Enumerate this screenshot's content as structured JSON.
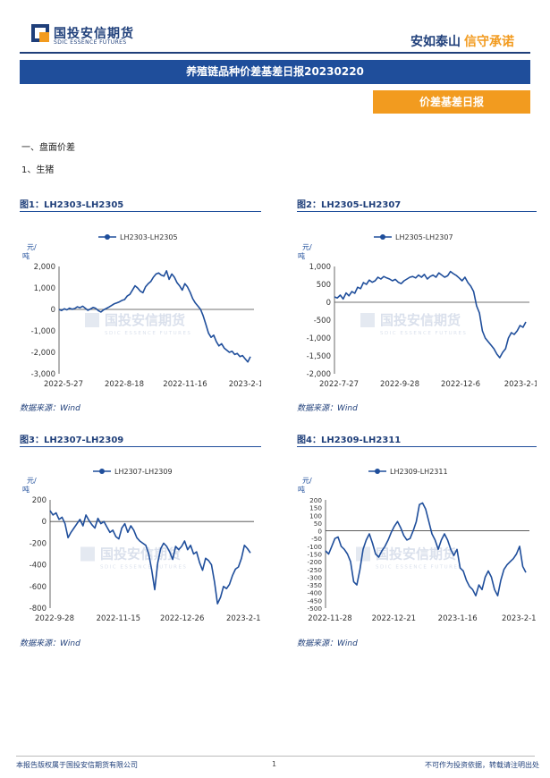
{
  "header": {
    "logo_cn": "国投安信期货",
    "logo_en": "SDIC ESSENCE FUTURES",
    "slogan_a": "安如泰山",
    "slogan_b": "信守承诺",
    "brand_color": "#1f3f7a",
    "accent_color": "#f29b1f"
  },
  "title": "养殖链品种价差基差日报20230220",
  "tag": "价差基差日报",
  "section": "一、盘面价差",
  "subsection": "1、生猪",
  "watermark_cn": "国投安信期货",
  "watermark_en": "SDIC ESSENCE FUTURES",
  "source": "数据来源：Wind",
  "footer": {
    "left": "本报告版权属于国投安信期货有限公司",
    "page": "1",
    "right": "不可作为投资依据，转载请注明出处"
  },
  "charts": [
    {
      "title": "图1：LH2303-LH2305",
      "legend": "LH2303-LH2305",
      "unit": "元/吨",
      "ylim": [
        -3000,
        2000
      ],
      "yticks": [
        "2,000",
        "1,000",
        "0",
        "-1,000",
        "-2,000",
        "-3,000"
      ],
      "xticks": [
        "2022-5-27",
        "2022-8-18",
        "2022-11-16",
        "2023-2-1"
      ]
    },
    {
      "title": "图2：LH2305-LH2307",
      "legend": "LH2305-LH2307",
      "unit": "元/吨",
      "ylim": [
        -2000,
        1000
      ],
      "yticks": [
        "1,000",
        "500",
        "0",
        "-500",
        "-1,000",
        "-1,500",
        "-2,000"
      ],
      "xticks": [
        "2022-7-27",
        "2022-9-28",
        "2022-12-6",
        "2023-2-1"
      ]
    },
    {
      "title": "图3：LH2307-LH2309",
      "legend": "LH2307-LH2309",
      "unit": "元/吨",
      "ylim": [
        -800,
        200
      ],
      "yticks": [
        "200",
        "0",
        "-200",
        "-400",
        "-600",
        "-800"
      ],
      "xticks": [
        "2022-9-28",
        "2022-11-15",
        "2022-12-26",
        "2023-2-13"
      ]
    },
    {
      "title": "图4：LH2309-LH2311",
      "legend": "LH2309-LH2311",
      "unit": "元/吨",
      "ylim": [
        -500,
        200
      ],
      "yticks": [
        "200",
        "150",
        "100",
        "50",
        "0",
        "-50",
        "-100",
        "-150",
        "-200",
        "-250",
        "-300",
        "-350",
        "-400",
        "-450",
        "-500"
      ],
      "xticks": [
        "2022-11-28",
        "2022-12-21",
        "2023-1-16",
        "2023-2-15"
      ]
    }
  ],
  "chart_data": [
    {
      "type": "line",
      "title": "图1：LH2303-LH2305",
      "ylabel": "元/吨",
      "ylim": [
        -3000,
        2000
      ],
      "series": [
        {
          "name": "LH2303-LH2305",
          "color": "#1f4e9b",
          "values": [
            0,
            -50,
            30,
            -20,
            60,
            10,
            40,
            120,
            80,
            150,
            60,
            -40,
            20,
            90,
            50,
            -60,
            -120,
            -20,
            40,
            110,
            180,
            260,
            300,
            350,
            420,
            460,
            620,
            700,
            900,
            1100,
            1000,
            850,
            780,
            1050,
            1200,
            1300,
            1500,
            1650,
            1700,
            1600,
            1550,
            1800,
            1400,
            1650,
            1500,
            1250,
            1100,
            900,
            1200,
            1050,
            800,
            500,
            300,
            150,
            0,
            -300,
            -700,
            -1100,
            -1300,
            -1200,
            -1500,
            -1700,
            -1600,
            -1800,
            -1900,
            -2000,
            -1950,
            -2100,
            -2050,
            -2200,
            -2150,
            -2300,
            -2450,
            -2200
          ]
        }
      ]
    },
    {
      "type": "line",
      "title": "图2：LH2305-LH2307",
      "ylabel": "元/吨",
      "ylim": [
        -2000,
        1000
      ],
      "series": [
        {
          "name": "LH2305-LH2307",
          "color": "#1f4e9b",
          "values": [
            150,
            120,
            200,
            90,
            260,
            180,
            300,
            250,
            420,
            380,
            550,
            500,
            620,
            560,
            600,
            700,
            650,
            720,
            680,
            650,
            600,
            640,
            560,
            520,
            600,
            650,
            700,
            720,
            680,
            760,
            700,
            780,
            650,
            720,
            760,
            700,
            820,
            760,
            700,
            740,
            860,
            800,
            750,
            680,
            600,
            700,
            550,
            450,
            300,
            -100,
            -300,
            -800,
            -1000,
            -1100,
            -1200,
            -1300,
            -1450,
            -1550,
            -1400,
            -1300,
            -1000,
            -850,
            -900,
            -800,
            -650,
            -700,
            -550
          ]
        }
      ]
    },
    {
      "type": "line",
      "title": "图3：LH2307-LH2309",
      "ylabel": "元/吨",
      "ylim": [
        -800,
        200
      ],
      "series": [
        {
          "name": "LH2307-LH2309",
          "color": "#1f4e9b",
          "values": [
            100,
            60,
            80,
            20,
            40,
            -20,
            -150,
            -100,
            -60,
            -20,
            20,
            -40,
            60,
            10,
            -30,
            -60,
            30,
            -20,
            0,
            -50,
            -100,
            -80,
            -140,
            -160,
            -60,
            -20,
            -100,
            -40,
            -80,
            -150,
            -180,
            -200,
            -220,
            -300,
            -450,
            -630,
            -380,
            -250,
            -200,
            -230,
            -280,
            -350,
            -230,
            -260,
            -230,
            -180,
            -260,
            -220,
            -300,
            -280,
            -380,
            -450,
            -340,
            -360,
            -400,
            -560,
            -760,
            -700,
            -600,
            -620,
            -580,
            -500,
            -440,
            -420,
            -340,
            -220,
            -250,
            -290
          ]
        }
      ]
    },
    {
      "type": "line",
      "title": "图4：LH2309-LH2311",
      "ylabel": "元/吨",
      "ylim": [
        -500,
        200
      ],
      "series": [
        {
          "name": "LH2309-LH2311",
          "color": "#1f4e9b",
          "values": [
            -130,
            -150,
            -100,
            -50,
            -40,
            -100,
            -120,
            -150,
            -200,
            -330,
            -350,
            -250,
            -120,
            -60,
            -20,
            -80,
            -150,
            -170,
            -130,
            -100,
            -60,
            -10,
            30,
            60,
            20,
            -30,
            -60,
            -50,
            0,
            60,
            170,
            180,
            140,
            60,
            -20,
            -60,
            -120,
            -60,
            -20,
            -60,
            -120,
            -160,
            -120,
            -240,
            -260,
            -320,
            -360,
            -380,
            -420,
            -350,
            -380,
            -300,
            -260,
            -300,
            -380,
            -420,
            -320,
            -250,
            -220,
            -200,
            -180,
            -150,
            -100,
            -230,
            -270
          ]
        }
      ]
    }
  ]
}
